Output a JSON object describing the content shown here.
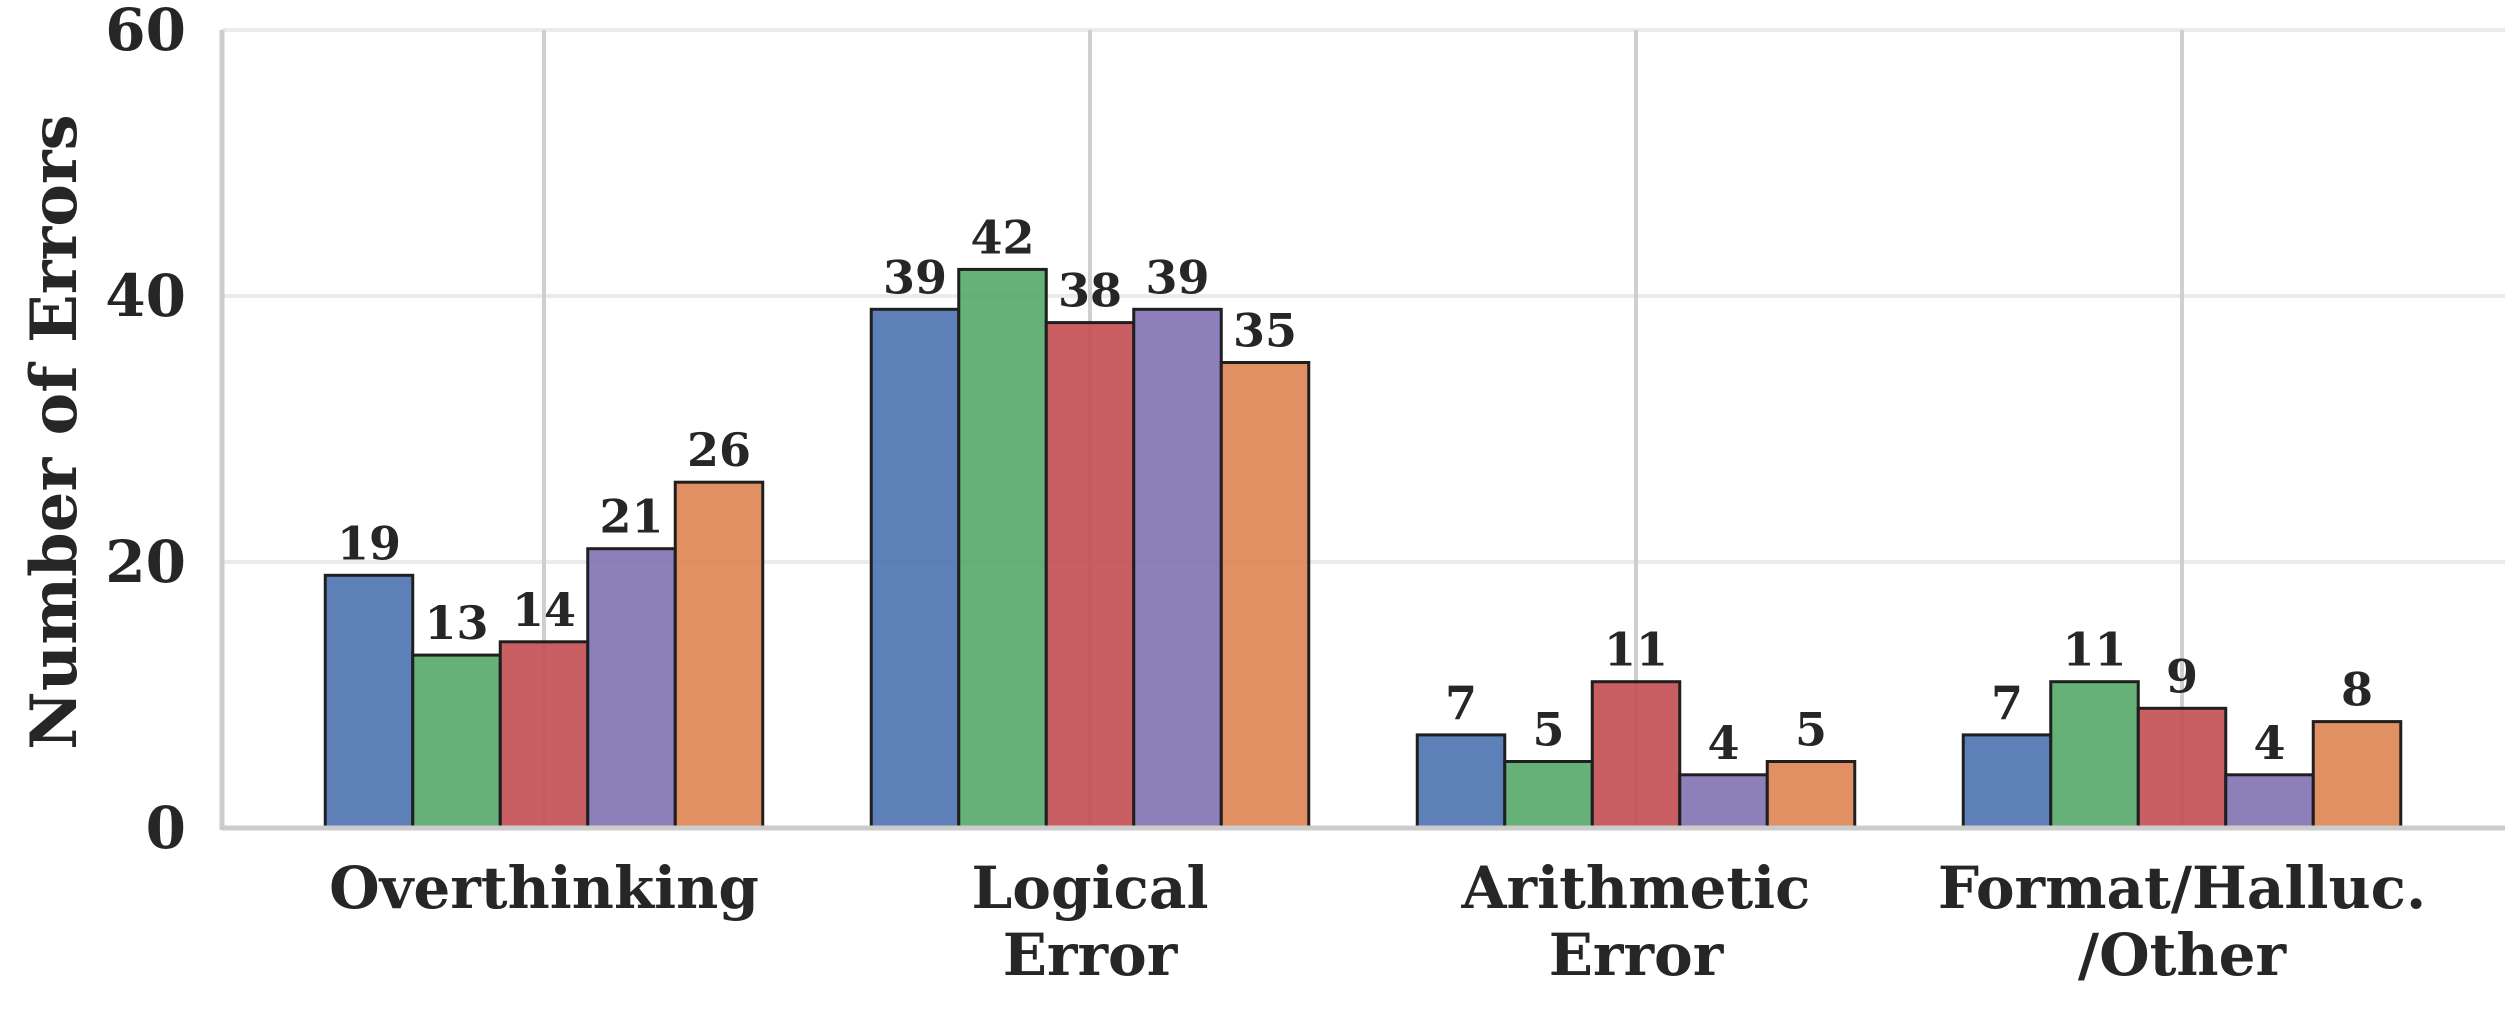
{
  "chart_data": {
    "type": "bar",
    "title": "",
    "xlabel": "",
    "ylabel": "Number of Errors",
    "ylim": [
      0,
      60
    ],
    "yticks": [
      0,
      20,
      40,
      60
    ],
    "grid": true,
    "legend": "none",
    "categories": [
      [
        "Overthinking"
      ],
      [
        "Logical",
        "Error"
      ],
      [
        "Arithmetic",
        "Error"
      ],
      [
        "Format/Halluc.",
        "/Other"
      ]
    ],
    "series": [
      {
        "color": "#4c72b0",
        "values": [
          19,
          39,
          7,
          7
        ]
      },
      {
        "color": "#55a868",
        "values": [
          13,
          42,
          5,
          11
        ]
      },
      {
        "color": "#c44e52",
        "values": [
          14,
          38,
          11,
          9
        ]
      },
      {
        "color": "#8172b3",
        "values": [
          21,
          39,
          4,
          4
        ]
      },
      {
        "color": "#dd8452",
        "values": [
          26,
          35,
          5,
          8
        ]
      }
    ]
  }
}
